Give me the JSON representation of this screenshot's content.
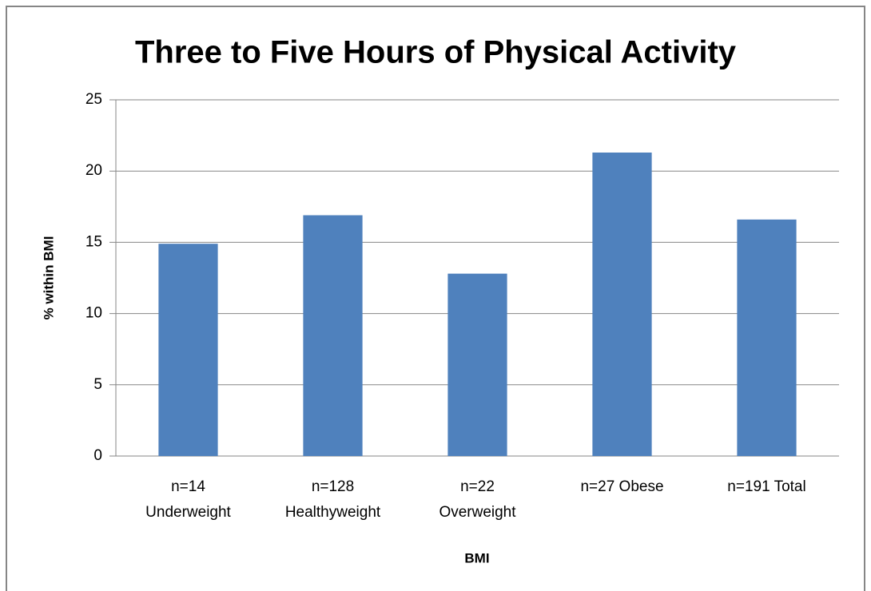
{
  "chart_data": {
    "type": "bar",
    "title": "Three to Five Hours of Physical Activity",
    "x_label": "BMI",
    "y_label": "% within BMI",
    "categories": [
      "n=14\nUnderweight",
      "n=128\nHealthyweight",
      "n=22\nOverweight",
      "n=27 Obese",
      "n=191 Total"
    ],
    "values": [
      14.9,
      16.9,
      12.8,
      21.3,
      16.6
    ],
    "color": "#4f81bd",
    "ylim": [
      0,
      25
    ],
    "yticks": [
      0,
      5,
      10,
      15,
      20,
      25
    ],
    "grid": true
  }
}
